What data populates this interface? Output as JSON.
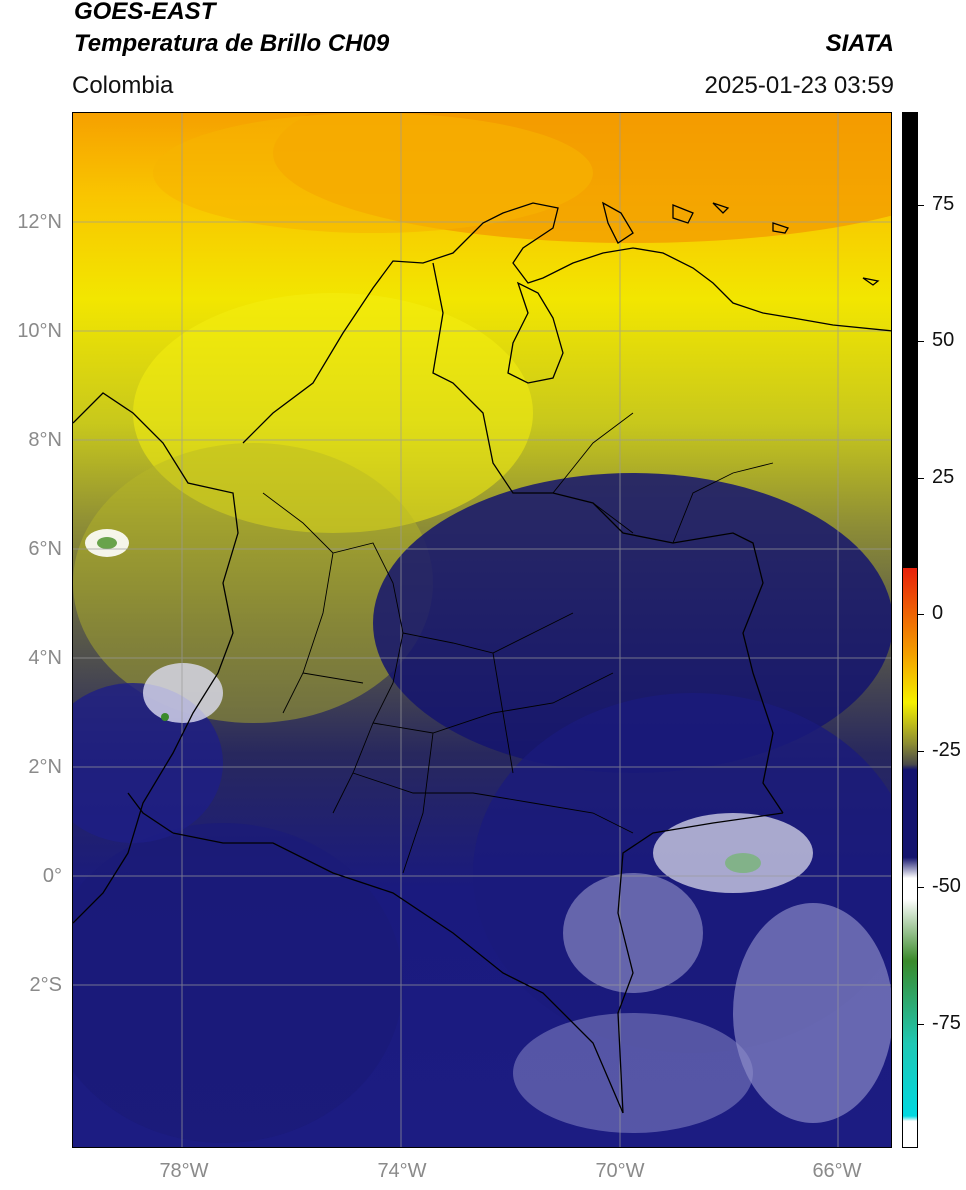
{
  "header": {
    "title_line1": "GOES-EAST",
    "title_line2": "Temperatura de Brillo CH09",
    "agency": "SIATA",
    "region": "Colombia",
    "timestamp": "2025-01-23 03:59"
  },
  "map": {
    "lat_labels": [
      "12°N",
      "10°N",
      "8°N",
      "6°N",
      "4°N",
      "2°N",
      "0°",
      "2°S"
    ],
    "lon_labels": [
      "78°W",
      "74°W",
      "70°W",
      "66°W"
    ],
    "extent": {
      "lon": [
        -80,
        -65
      ],
      "lat": [
        -5,
        14
      ]
    },
    "coastline_color": "#000000",
    "gridline_color": "#9a9a9a"
  },
  "colorbar": {
    "tick_labels": [
      "75",
      "50",
      "25",
      "0",
      "-25",
      "-50",
      "-75"
    ],
    "tick_values": [
      75,
      50,
      25,
      0,
      -25,
      -50,
      -75
    ],
    "range": [
      -95,
      95
    ],
    "colors": {
      "warm_top": "#000000",
      "red": "#e8200a",
      "orange": "#f39a00",
      "yellow": "#f5f000",
      "olive": "#8c8c32",
      "gray": "#4a4a4a",
      "navy": "#14146e",
      "white": "#ffffff",
      "green": "#3a8a2a",
      "teal": "#20c8b4",
      "cyan": "#00d8e0"
    }
  }
}
